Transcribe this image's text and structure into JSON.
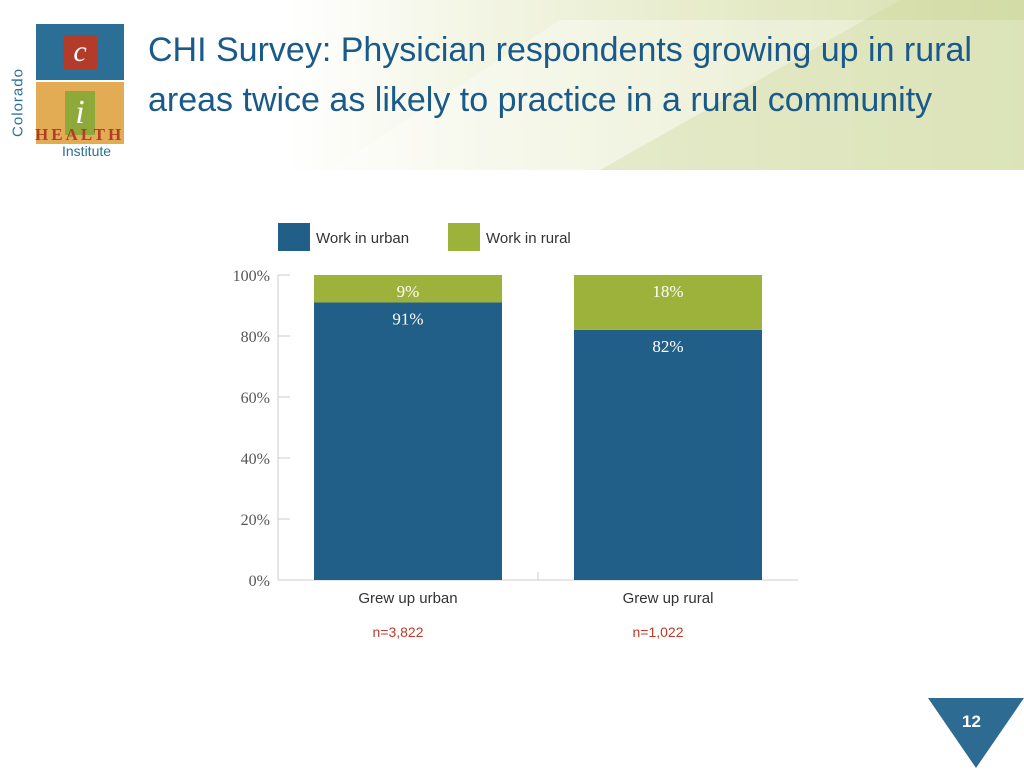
{
  "slide": {
    "title": "CHI Survey: Physician respondents growing up in rural areas twice as likely to practice in a rural community",
    "page_number": "12"
  },
  "logo": {
    "letter_c": "c",
    "letter_i": "i",
    "colorado": "Colorado",
    "health": "HEALTH",
    "institute": "Institute"
  },
  "colors": {
    "urban": "#225f88",
    "rural": "#9cb23a",
    "sample_size": "#c0392b",
    "title": "#1a5a8a"
  },
  "chart_data": {
    "type": "bar",
    "stacked": true,
    "categories": [
      "Grew up urban",
      "Grew up rural"
    ],
    "series": [
      {
        "name": "Work in urban",
        "values": [
          91,
          82
        ],
        "labels": [
          "91%",
          "82%"
        ]
      },
      {
        "name": "Work in rural",
        "values": [
          9,
          18
        ],
        "labels": [
          "9%",
          "18%"
        ]
      }
    ],
    "ylim": [
      0,
      100
    ],
    "yticks": [
      "0%",
      "20%",
      "40%",
      "60%",
      "80%",
      "100%"
    ],
    "ytick_values": [
      0,
      20,
      40,
      60,
      80,
      100
    ],
    "sample_sizes": [
      "n=3,822",
      "n=1,022"
    ],
    "legend_position": "top",
    "grid": false
  }
}
